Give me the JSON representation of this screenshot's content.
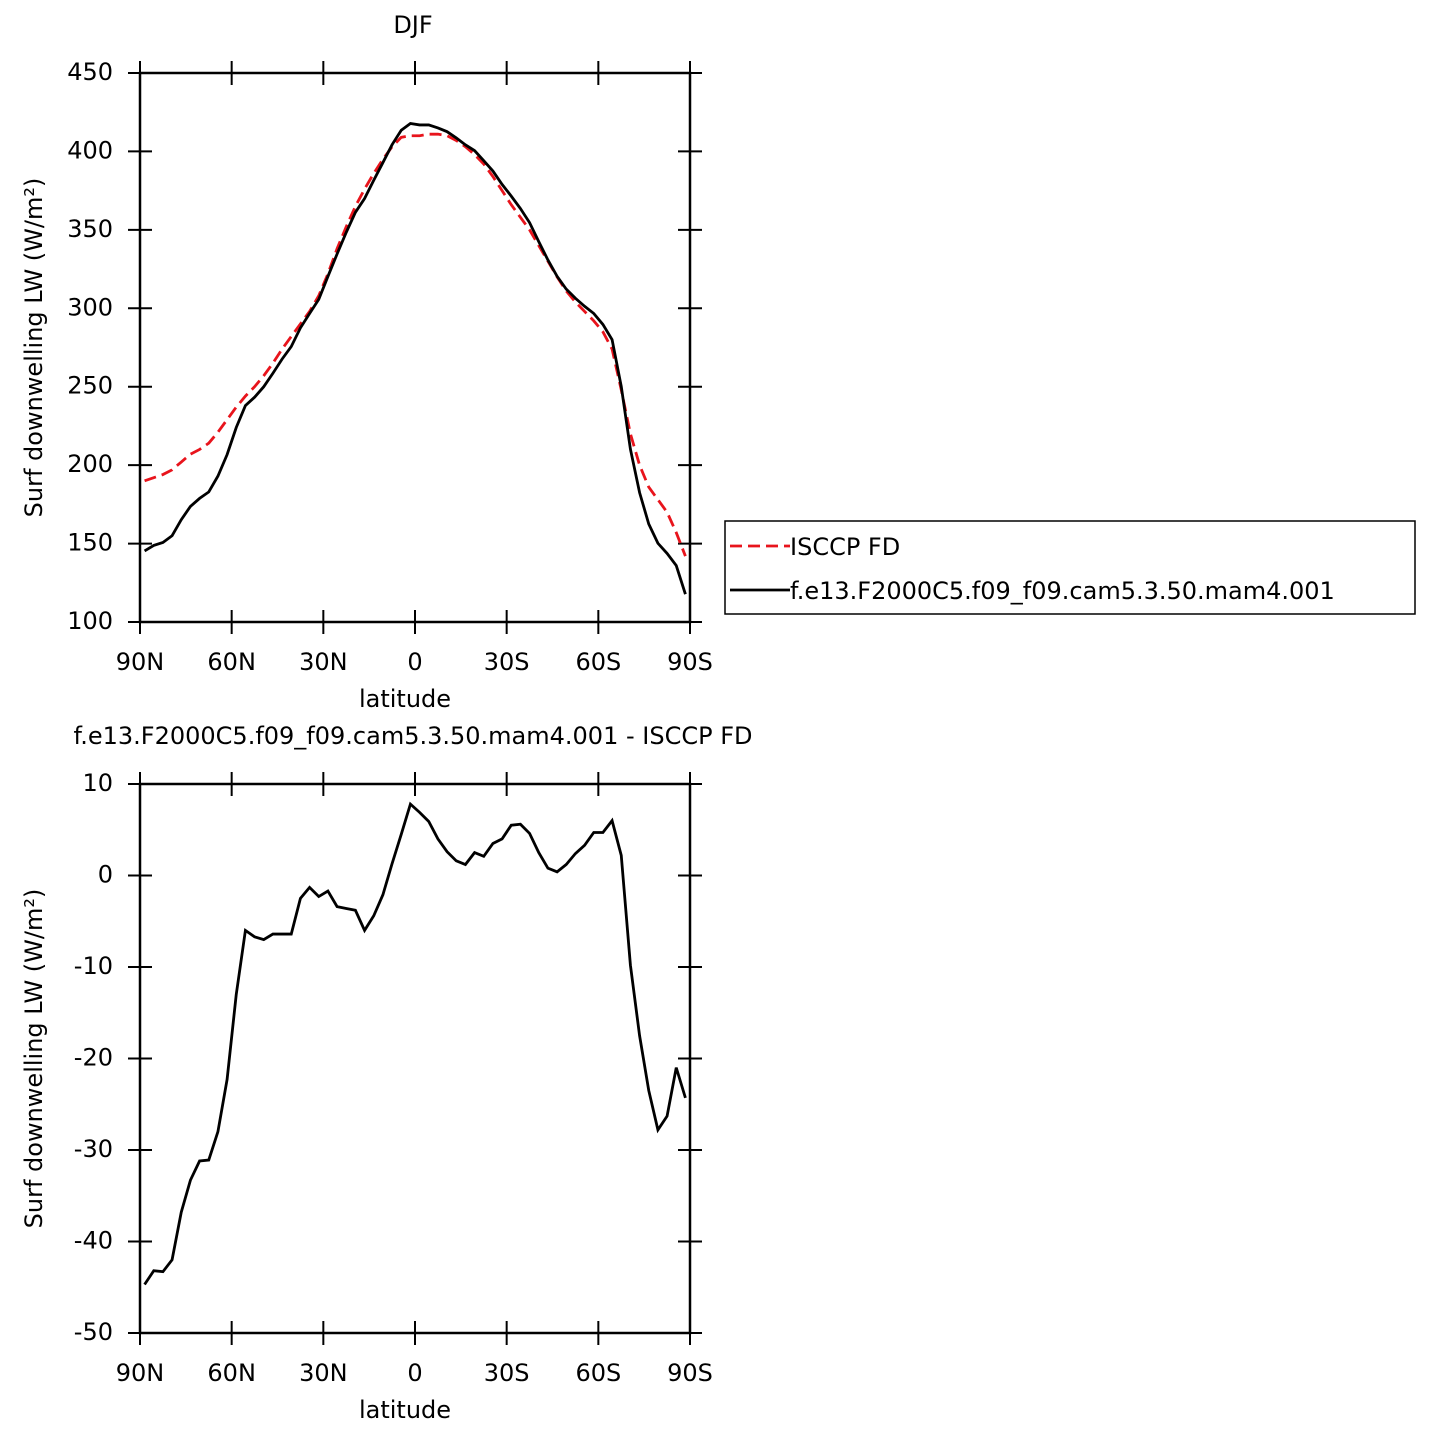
{
  "chart_data": [
    {
      "type": "line",
      "title": "DJF",
      "x": [
        88.5,
        85.5,
        82.5,
        79.5,
        76.5,
        73.5,
        70.5,
        67.5,
        64.5,
        61.5,
        58.5,
        55.5,
        52.5,
        49.5,
        46.5,
        43.5,
        40.5,
        37.5,
        34.5,
        31.5,
        28.5,
        25.5,
        22.5,
        19.5,
        16.5,
        13.5,
        10.5,
        7.5,
        4.5,
        1.5,
        -1.5,
        -4.5,
        -7.5,
        -10.5,
        -13.5,
        -16.5,
        -19.5,
        -22.5,
        -25.5,
        -28.5,
        -31.5,
        -34.5,
        -37.5,
        -40.5,
        -43.5,
        -46.5,
        -49.5,
        -52.5,
        -55.5,
        -58.5,
        -61.5,
        -64.5,
        -67.5,
        -70.5,
        -73.5,
        -76.5,
        -79.5,
        -82.5,
        -85.5,
        -88.5
      ],
      "series": [
        {
          "name": "ISCCP FD",
          "color": "#e8141c",
          "linestyle": "dashed",
          "values": [
            190,
            192,
            194,
            197,
            202,
            207,
            210,
            214,
            221,
            229,
            237,
            244,
            250,
            257,
            265,
            274,
            282,
            290,
            298,
            308,
            322,
            338,
            352,
            365,
            376,
            386,
            395,
            403,
            409,
            410,
            410,
            411,
            411,
            410,
            407,
            403,
            398,
            392,
            384,
            375,
            366,
            358,
            350,
            340,
            330,
            320,
            311,
            304,
            298,
            292,
            285,
            274,
            248,
            220,
            200,
            186,
            178,
            170,
            157,
            142
          ]
        },
        {
          "name": "f.e13.F2000C5.f09_f09.cam5.3.50.mam4.001",
          "color": "#000000",
          "linestyle": "solid",
          "values": [
            145.3,
            148.8,
            150.7,
            155,
            165.2,
            173.7,
            178.8,
            182.9,
            193,
            206.7,
            224,
            238,
            243.3,
            250,
            258.6,
            267.6,
            275.6,
            287.5,
            296.7,
            305.7,
            320.3,
            334.6,
            348.4,
            361.2,
            370,
            381.6,
            392.9,
            404.3,
            413.5,
            417.8,
            416.9,
            416.9,
            415,
            412.6,
            408.6,
            404.2,
            400.5,
            394.1,
            387.5,
            379,
            371.5,
            363.6,
            354.6,
            342.5,
            330.8,
            320.4,
            312.2,
            306.4,
            301.3,
            296.7,
            289.7,
            280,
            250.2,
            210.2,
            182.5,
            162.5,
            150.2,
            143.7,
            136,
            117.7
          ]
        }
      ],
      "xlim": [
        90,
        -90
      ],
      "xticks": [
        {
          "value": 90,
          "label": "90N"
        },
        {
          "value": 60,
          "label": "60N"
        },
        {
          "value": 30,
          "label": "30N"
        },
        0,
        {
          "value": -30,
          "label": "30S"
        },
        {
          "value": -60,
          "label": "60S"
        },
        {
          "value": -90,
          "label": "90S"
        }
      ],
      "ylim": [
        100,
        450
      ],
      "yticks": [
        100,
        150,
        200,
        250,
        300,
        350,
        400,
        450
      ],
      "xlabel": "latitude",
      "ylabel": "Surf downwelling LW (W/m²)",
      "legend": "right"
    },
    {
      "type": "line",
      "title": "f.e13.F2000C5.f09_f09.cam5.3.50.mam4.001 - ISCCP FD",
      "x": [
        88.5,
        85.5,
        82.5,
        79.5,
        76.5,
        73.5,
        70.5,
        67.5,
        64.5,
        61.5,
        58.5,
        55.5,
        52.5,
        49.5,
        46.5,
        43.5,
        40.5,
        37.5,
        34.5,
        31.5,
        28.5,
        25.5,
        22.5,
        19.5,
        16.5,
        13.5,
        10.5,
        7.5,
        4.5,
        1.5,
        -1.5,
        -4.5,
        -7.5,
        -10.5,
        -13.5,
        -16.5,
        -19.5,
        -22.5,
        -25.5,
        -28.5,
        -31.5,
        -34.5,
        -37.5,
        -40.5,
        -43.5,
        -46.5,
        -49.5,
        -52.5,
        -55.5,
        -58.5,
        -61.5,
        -64.5,
        -67.5,
        -70.5,
        -73.5,
        -76.5,
        -79.5,
        -82.5,
        -85.5,
        -88.5
      ],
      "series": [
        {
          "color": "#000000",
          "linestyle": "solid",
          "values": [
            -44.7,
            -43.2,
            -43.3,
            -42,
            -36.8,
            -33.3,
            -31.2,
            -31.1,
            -28,
            -22.3,
            -13,
            -6,
            -6.7,
            -7,
            -6.4,
            -6.4,
            -6.4,
            -2.5,
            -1.3,
            -2.3,
            -1.7,
            -3.4,
            -3.6,
            -3.8,
            -6,
            -4.4,
            -2.1,
            1.3,
            4.5,
            7.8,
            6.9,
            5.9,
            4.0,
            2.6,
            1.6,
            1.2,
            2.5,
            2.1,
            3.5,
            4.0,
            5.5,
            5.6,
            4.6,
            2.5,
            0.8,
            0.4,
            1.2,
            2.4,
            3.3,
            4.7,
            4.7,
            6.0,
            2.2,
            -9.8,
            -17.5,
            -23.5,
            -27.8,
            -26.3,
            -21,
            -24.3
          ]
        }
      ],
      "xlim": [
        90,
        -90
      ],
      "xticks": [
        {
          "value": 90,
          "label": "90N"
        },
        {
          "value": 60,
          "label": "60N"
        },
        {
          "value": 30,
          "label": "30N"
        },
        0,
        {
          "value": -30,
          "label": "30S"
        },
        {
          "value": -60,
          "label": "60S"
        },
        {
          "value": -90,
          "label": "90S"
        }
      ],
      "ylim": [
        -50,
        10
      ],
      "yticks": [
        -50,
        -40,
        -30,
        -20,
        -10,
        0,
        10
      ],
      "xlabel": "latitude",
      "ylabel": "Surf downwelling LW (W/m²)"
    }
  ]
}
